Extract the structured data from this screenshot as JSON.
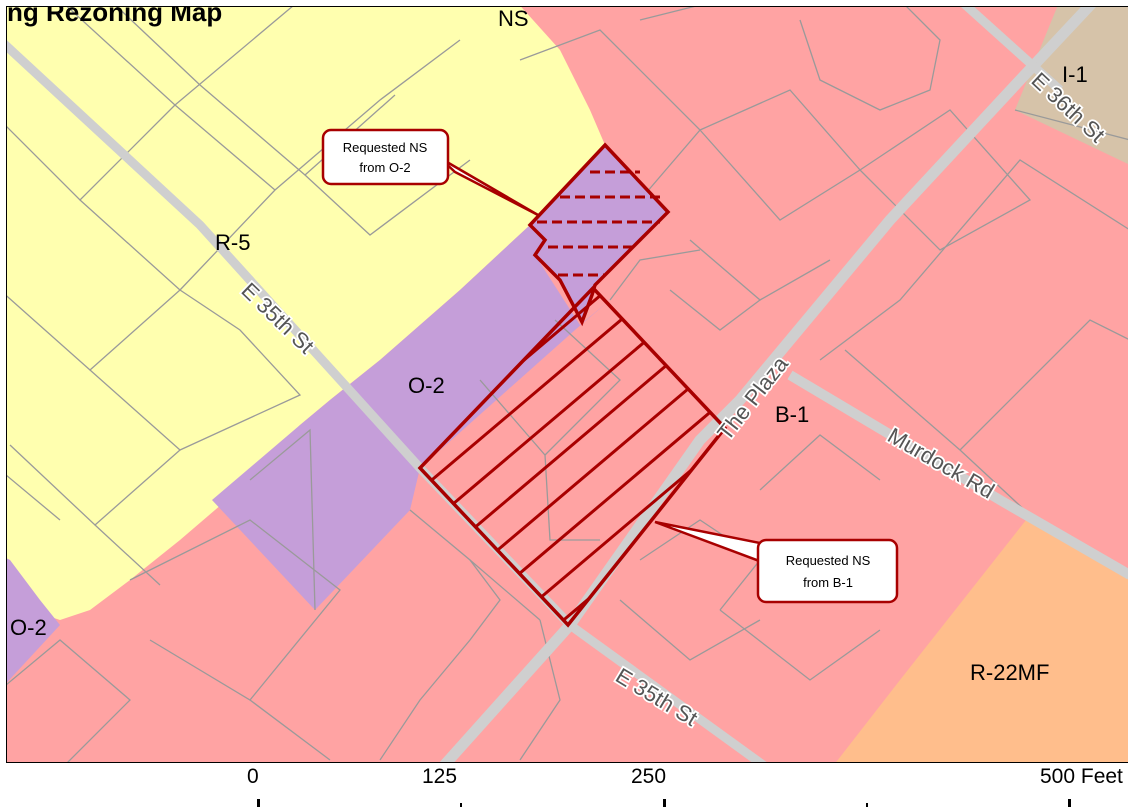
{
  "map_title_partial": "ng Rezoning Map",
  "zones": {
    "r5": "R-5",
    "o2_center": "O-2",
    "o2_left": "O-2",
    "b1": "B-1",
    "i1": "I-1",
    "r22mf": "R-22MF",
    "ns": "NS"
  },
  "streets": {
    "e35_upper": "E 35th St",
    "e35_lower": "E 35th St",
    "plaza": "The Plaza",
    "murdock": "Murdock Rd",
    "e36": "E 36th St"
  },
  "callouts": {
    "from_o2": [
      "Requested NS",
      "from O-2"
    ],
    "from_b1": [
      "Requested NS",
      "from B-1"
    ]
  },
  "scale": {
    "labels": [
      "0",
      "125",
      "250",
      "500 Feet"
    ]
  },
  "colors": {
    "residential_yellow": "#FFFFAF",
    "business_pink": "#FFA3A3",
    "office_purple": "#C59ED9",
    "industrial_tan": "#D6C3A9",
    "multifamily_orange": "#FFBE8C",
    "request_outline": "#A80000",
    "parcel_line": "#9a9a9a",
    "street_gray": "#CFCFCF"
  }
}
